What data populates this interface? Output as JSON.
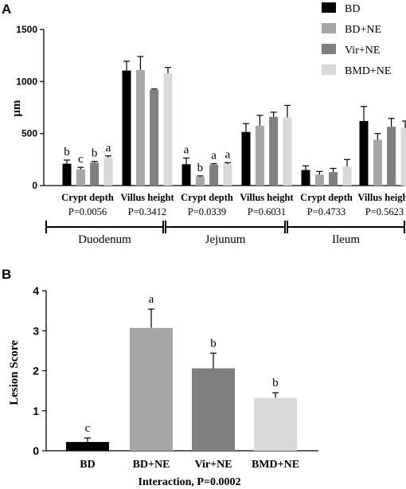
{
  "colors": {
    "BD": "#000000",
    "BD+NE": "#a6a6a6",
    "Vir+NE": "#7f7f7f",
    "BMD+NE": "#d9d9d9",
    "axis": "#000000"
  },
  "chart_data": [
    {
      "id": "A",
      "type": "bar",
      "panel_label": "A",
      "ylabel": "μm",
      "ylim": [
        0,
        1500
      ],
      "yticks": [
        0,
        500,
        1000,
        1500
      ],
      "legend_position": "top-right",
      "series_names": [
        "BD",
        "BD+NE",
        "Vir+NE",
        "BMD+NE"
      ],
      "groups": [
        {
          "label": "Crypt depth",
          "p_label": "P=0.0056",
          "section": "Duodenum",
          "values": [
            210,
            155,
            220,
            270
          ],
          "errors": [
            35,
            20,
            12,
            15
          ],
          "letters": [
            "b",
            "c",
            "b",
            "a"
          ]
        },
        {
          "label": "Villus height",
          "p_label": "P=0.3412",
          "section": "Duodenum",
          "values": [
            1105,
            1110,
            920,
            1080
          ],
          "errors": [
            90,
            130,
            8,
            55
          ],
          "letters": [
            "",
            "",
            "",
            ""
          ]
        },
        {
          "label": "Crypt depth",
          "p_label": "P=0.0339",
          "section": "Jejunum",
          "values": [
            205,
            85,
            200,
            205
          ],
          "errors": [
            60,
            8,
            10,
            15
          ],
          "letters": [
            "a",
            "b",
            "a",
            "a"
          ]
        },
        {
          "label": "Villus height",
          "p_label": "P=0.6031",
          "section": "Jejunum",
          "values": [
            515,
            575,
            660,
            655
          ],
          "errors": [
            80,
            100,
            45,
            115
          ],
          "letters": [
            "",
            "",
            "",
            ""
          ]
        },
        {
          "label": "Crypt depth",
          "p_label": "P=0.4733",
          "section": "Ileum",
          "values": [
            150,
            105,
            130,
            185
          ],
          "errors": [
            40,
            30,
            35,
            65
          ],
          "letters": [
            "",
            "",
            "",
            ""
          ]
        },
        {
          "label": "Villus height",
          "p_label": "P=0.5623",
          "section": "Ileum",
          "values": [
            620,
            440,
            565,
            555
          ],
          "errors": [
            140,
            60,
            80,
            65
          ],
          "letters": [
            "",
            "",
            "",
            ""
          ]
        }
      ],
      "sections": [
        "Duodenum",
        "Jejunum",
        "Ileum"
      ]
    },
    {
      "id": "B",
      "type": "bar",
      "panel_label": "B",
      "ylabel": "Lesion Score",
      "xlabel": "Interaction, P=0.0002",
      "ylim": [
        0,
        4
      ],
      "yticks": [
        0,
        1,
        2,
        3,
        4
      ],
      "categories": [
        "BD",
        "BD+NE",
        "Vir+NE",
        "BMD+NE"
      ],
      "values": [
        0.22,
        3.07,
        2.06,
        1.32
      ],
      "errors": [
        0.1,
        0.47,
        0.38,
        0.13
      ],
      "letters": [
        "c",
        "a",
        "b",
        "b"
      ]
    }
  ]
}
